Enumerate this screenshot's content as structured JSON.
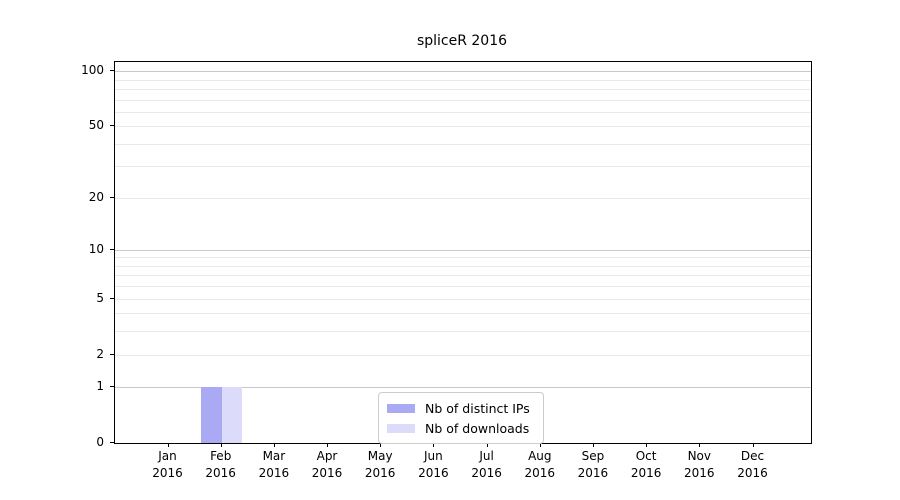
{
  "chart_data": {
    "type": "bar",
    "title": "spliceR 2016",
    "categories": [
      [
        "Jan",
        "2016"
      ],
      [
        "Feb",
        "2016"
      ],
      [
        "Mar",
        "2016"
      ],
      [
        "Apr",
        "2016"
      ],
      [
        "May",
        "2016"
      ],
      [
        "Jun",
        "2016"
      ],
      [
        "Jul",
        "2016"
      ],
      [
        "Aug",
        "2016"
      ],
      [
        "Sep",
        "2016"
      ],
      [
        "Oct",
        "2016"
      ],
      [
        "Nov",
        "2016"
      ],
      [
        "Dec",
        "2016"
      ]
    ],
    "series": [
      {
        "name": "Nb of distinct IPs",
        "color": "#a9a9f4",
        "values": [
          0,
          1,
          0,
          0,
          0,
          0,
          0,
          0,
          0,
          0,
          0,
          0
        ]
      },
      {
        "name": "Nb of downloads",
        "color": "#dcdcfa",
        "values": [
          0,
          1,
          0,
          0,
          0,
          0,
          0,
          0,
          0,
          0,
          0,
          0
        ]
      }
    ],
    "xlabel": "",
    "ylabel": "",
    "y_scale": "log1p",
    "ylim": [
      0,
      112
    ],
    "y_ticks": [
      0,
      1,
      2,
      5,
      10,
      20,
      50,
      100
    ],
    "y_minor_gridlines": [
      3,
      4,
      6,
      7,
      8,
      9,
      30,
      40,
      60,
      70,
      80,
      90
    ],
    "y_major_gridlines": [
      1,
      10,
      100
    ],
    "grid": "horizontal",
    "legend_position": "lower center",
    "colors": {
      "major_grid": "#c9c9c9",
      "minor_grid": "#eaeaea",
      "spine": "#000000",
      "text": "#000000"
    }
  }
}
